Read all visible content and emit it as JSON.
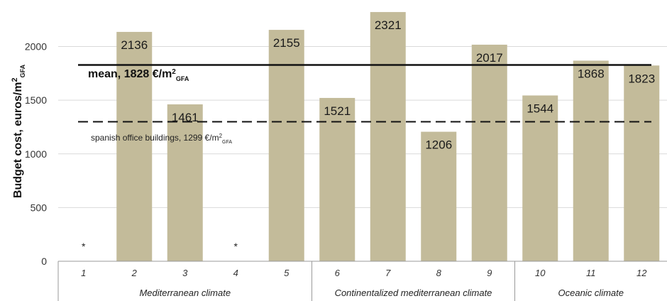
{
  "chart_data": {
    "type": "bar",
    "ylabel": {
      "main": "Budget cost, euros/m",
      "sup": "2",
      "sub": "GFA"
    },
    "ylim": [
      0,
      2400
    ],
    "yticks": [
      "0",
      "500",
      "1000",
      "1500",
      "2000"
    ],
    "grid": true,
    "bar_color": "#c3bb9a",
    "categories": [
      "1",
      "2",
      "3",
      "4",
      "5",
      "6",
      "7",
      "8",
      "9",
      "10",
      "11",
      "12"
    ],
    "values": [
      null,
      2136,
      1461,
      null,
      2155,
      1521,
      2321,
      1206,
      2017,
      1544,
      1868,
      1823
    ],
    "data_labels": [
      "",
      "2136",
      "1461",
      "",
      "2155",
      "1521",
      "2321",
      "1206",
      "2017",
      "1544",
      "1868",
      "1823"
    ],
    "missing_marker": "*",
    "groups": [
      {
        "label": "Mediterranean climate",
        "categories": [
          "1",
          "2",
          "3",
          "4",
          "5"
        ]
      },
      {
        "label": "Continentalized mediterranean climate",
        "categories": [
          "6",
          "7",
          "8",
          "9"
        ]
      },
      {
        "label": "Oceanic climate",
        "categories": [
          "10",
          "11",
          "12"
        ]
      }
    ],
    "reference_lines": [
      {
        "id": "mean",
        "value": 1828,
        "style": "solid",
        "label": {
          "main": "mean, 1828 €/m",
          "sup": "2",
          "sub": "GFA"
        }
      },
      {
        "id": "spanish",
        "value": 1299,
        "style": "dashed",
        "label": {
          "main": "spanish office buildings, 1299 €/m",
          "sup": "2",
          "sub": "GFA"
        }
      }
    ]
  }
}
